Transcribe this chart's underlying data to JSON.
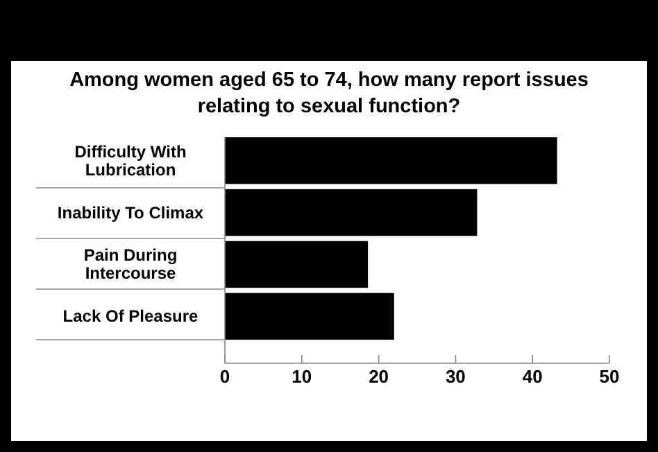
{
  "chart_data": {
    "type": "bar",
    "orientation": "horizontal",
    "title": "Among women aged 65 to 74, how many report issues relating to sexual function?",
    "categories": [
      "Difficulty With Lubrication",
      "Inability To Climax",
      "Pain During Intercourse",
      "Lack Of Pleasure"
    ],
    "values": [
      43.2,
      32.8,
      18.6,
      22.0
    ],
    "color": "#000000",
    "xlim": [
      0,
      50
    ],
    "xticks": [
      0,
      10,
      20,
      30,
      40,
      50
    ]
  }
}
